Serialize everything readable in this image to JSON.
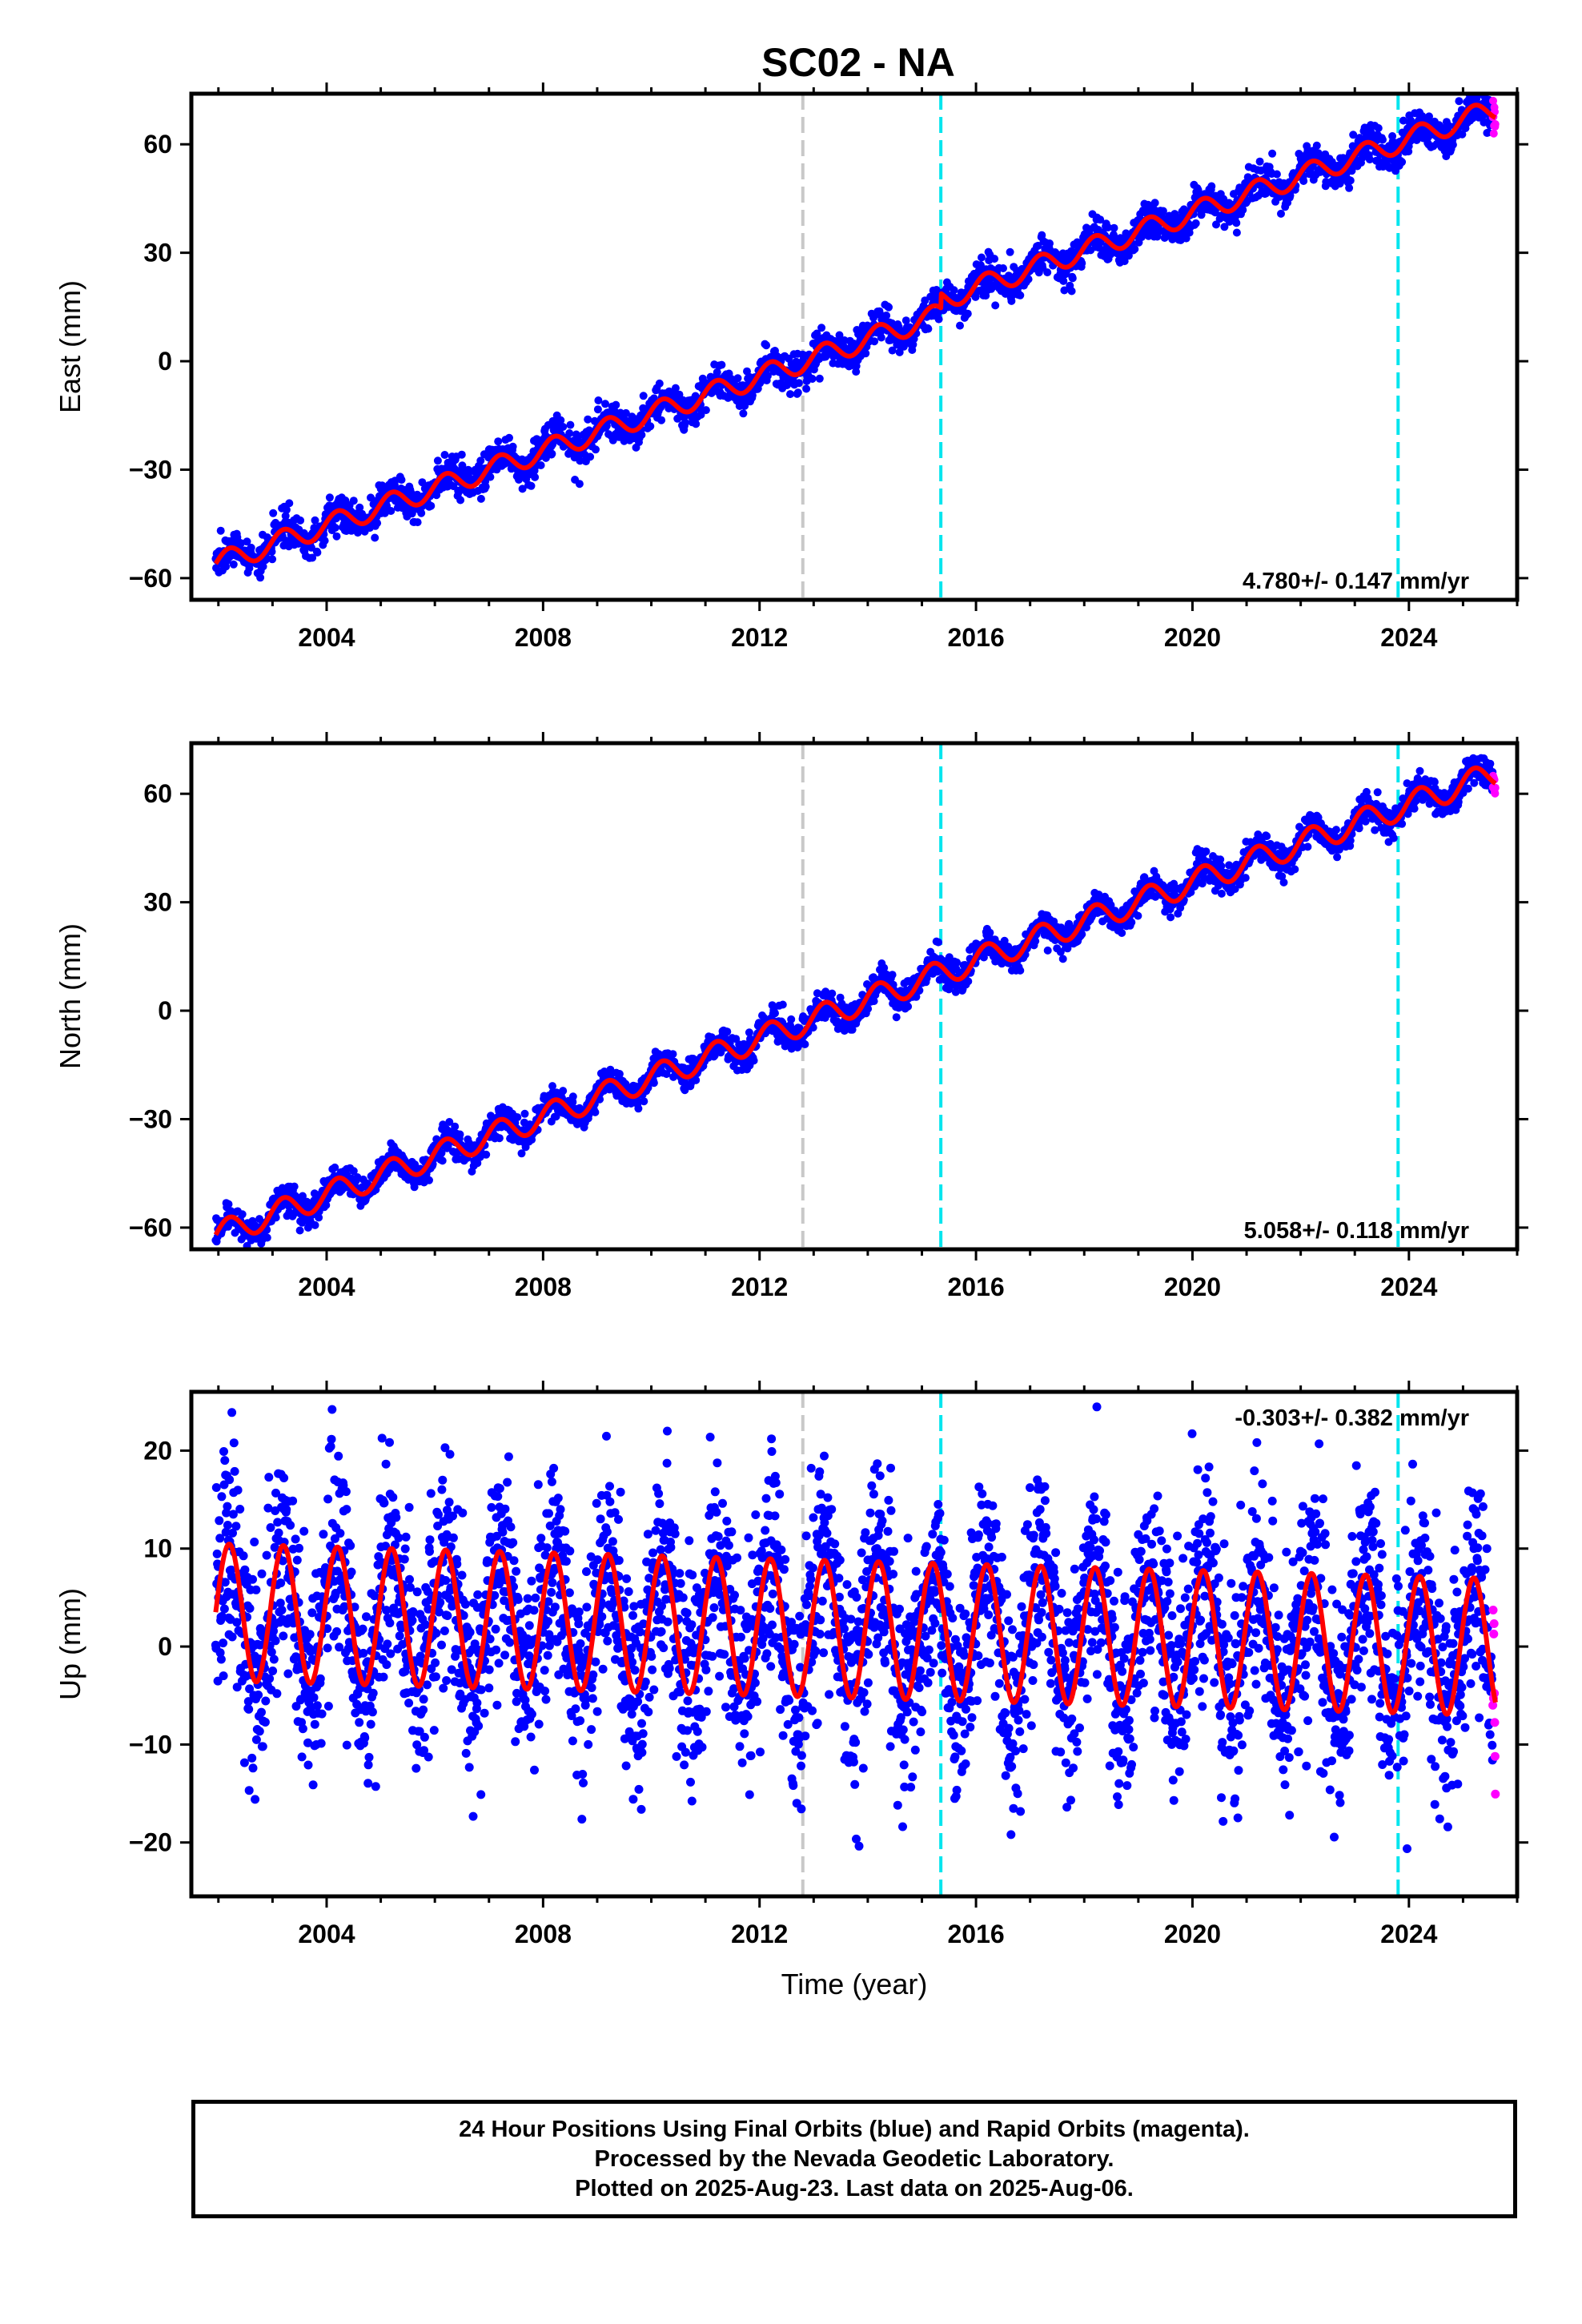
{
  "figure": {
    "title": "SC02 - NA"
  },
  "colors": {
    "final_orbits": "#0000ff",
    "rapid_orbits": "#ff00ff",
    "model_fit": "#ff0000",
    "antenna_change_line": "#00e5ee",
    "other_event_line": "#c8c8c8"
  },
  "chart_data": [
    {
      "type": "scatter",
      "name": "east",
      "ylabel": "East (mm)",
      "xlim": [
        2001.5,
        2026.0
      ],
      "ylim": [
        -66,
        74
      ],
      "yticks": [
        -60,
        -30,
        0,
        30,
        60
      ],
      "xticks": [
        2004,
        2008,
        2012,
        2016,
        2020,
        2024
      ],
      "x_tick_labels": [
        "2004",
        "2008",
        "2012",
        "2016",
        "2020",
        "2024"
      ],
      "grid": false,
      "rate_label": "4.780+/- 0.147 mm/yr",
      "rate_label_position": "bottom-right",
      "model": {
        "start": 2001.95,
        "end": 2025.6,
        "value_at_start": -56,
        "slope": 5.15,
        "seasonal_amplitude": 3
      },
      "offsets": [
        {
          "x": 2015.35,
          "delta": 4
        }
      ],
      "vlines": [
        {
          "x": 2012.8,
          "style": "gray-dashed"
        },
        {
          "x": 2015.35,
          "style": "cyan-dashed"
        },
        {
          "x": 2023.8,
          "style": "cyan-dashed"
        }
      ],
      "series": [
        {
          "name": "Final Orbits",
          "color": "#0000ff",
          "x_range": [
            2001.95,
            2025.55
          ],
          "scatter": 2.5
        },
        {
          "name": "Rapid Orbits",
          "color": "#ff00ff",
          "x_range": [
            2025.55,
            2025.6
          ],
          "scatter": 2
        }
      ]
    },
    {
      "type": "scatter",
      "name": "north",
      "ylabel": "North (mm)",
      "xlim": [
        2001.5,
        2026.0
      ],
      "ylim": [
        -66,
        74
      ],
      "yticks": [
        -60,
        -30,
        0,
        30,
        60
      ],
      "xticks": [
        2004,
        2008,
        2012,
        2016,
        2020,
        2024
      ],
      "x_tick_labels": [
        "2004",
        "2008",
        "2012",
        "2016",
        "2020",
        "2024"
      ],
      "grid": false,
      "rate_label": "5.058+/- 0.118 mm/yr",
      "rate_label_position": "bottom-right",
      "model": {
        "start": 2001.95,
        "end": 2025.6,
        "value_at_start": -62,
        "slope": 5.4,
        "seasonal_amplitude": 3.5
      },
      "offsets": [],
      "vlines": [
        {
          "x": 2012.8,
          "style": "gray-dashed"
        },
        {
          "x": 2015.35,
          "style": "cyan-dashed"
        },
        {
          "x": 2023.8,
          "style": "cyan-dashed"
        }
      ],
      "series": [
        {
          "name": "Final Orbits",
          "color": "#0000ff",
          "x_range": [
            2001.95,
            2025.55
          ],
          "scatter": 2
        },
        {
          "name": "Rapid Orbits",
          "color": "#ff00ff",
          "x_range": [
            2025.55,
            2025.6
          ],
          "scatter": 2
        }
      ]
    },
    {
      "type": "scatter",
      "name": "up",
      "ylabel": "Up (mm)",
      "xlabel": "Time (year)",
      "xlim": [
        2001.5,
        2026.0
      ],
      "ylim": [
        -25.5,
        26
      ],
      "yticks": [
        -20,
        -10,
        0,
        10,
        20
      ],
      "xticks": [
        2004,
        2008,
        2012,
        2016,
        2020,
        2024
      ],
      "x_tick_labels": [
        "2004",
        "2008",
        "2012",
        "2016",
        "2020",
        "2024"
      ],
      "grid": false,
      "rate_label": "-0.303+/- 0.382 mm/yr",
      "rate_label_position": "top-right",
      "model": {
        "start": 2001.95,
        "end": 2025.6,
        "value_at_start": 3.5,
        "slope": -0.15,
        "seasonal_amplitude": 7
      },
      "offsets": [],
      "vlines": [
        {
          "x": 2012.8,
          "style": "gray-dashed"
        },
        {
          "x": 2015.35,
          "style": "cyan-dashed"
        },
        {
          "x": 2023.8,
          "style": "cyan-dashed"
        }
      ],
      "series": [
        {
          "name": "Final Orbits",
          "color": "#0000ff",
          "x_range": [
            2001.95,
            2025.55
          ],
          "scatter": 5.5
        },
        {
          "name": "Rapid Orbits",
          "color": "#ff00ff",
          "x_range": [
            2025.55,
            2025.6
          ],
          "scatter": 4
        }
      ]
    }
  ],
  "caption": {
    "line1": "24 Hour Positions Using Final Orbits (blue) and Rapid Orbits (magenta).",
    "line2": "Processed by the Nevada Geodetic Laboratory.",
    "line3": "Plotted on 2025-Aug-23. Last data on 2025-Aug-06."
  }
}
